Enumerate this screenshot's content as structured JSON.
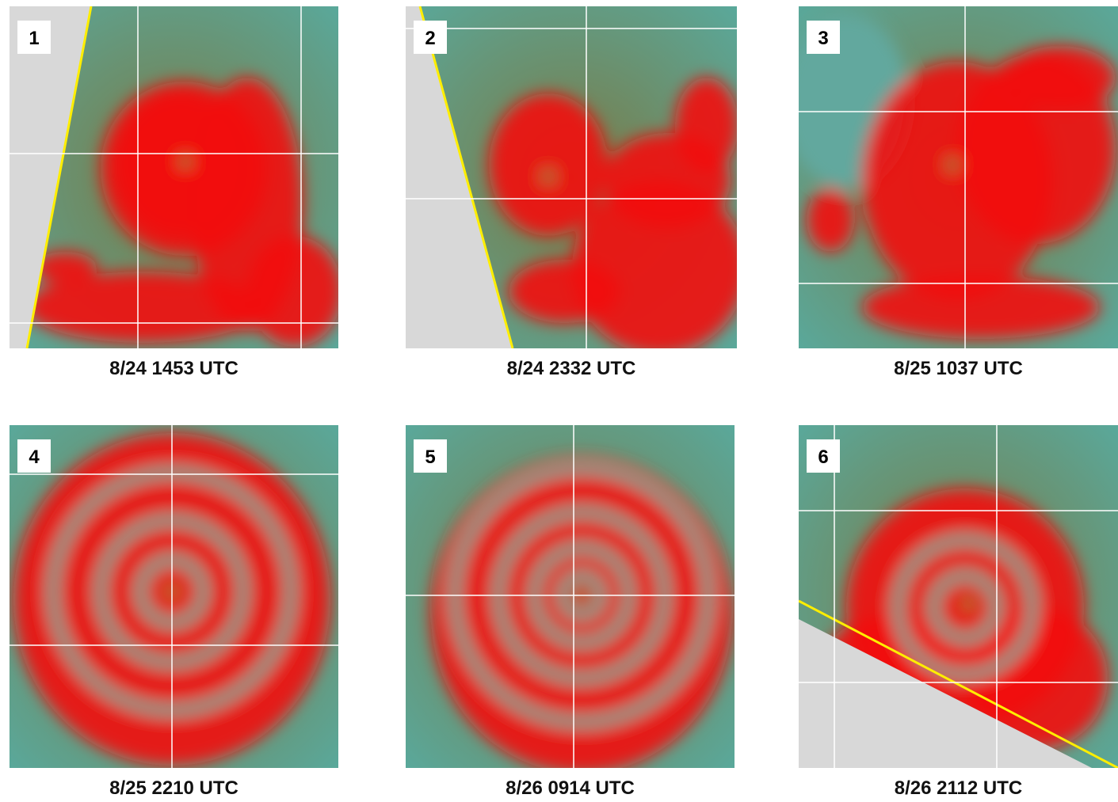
{
  "panels": [
    {
      "number": "1",
      "caption": "8/24 1453 UTC"
    },
    {
      "number": "2",
      "caption": "8/24 2332 UTC"
    },
    {
      "number": "3",
      "caption": "8/25 1037 UTC"
    },
    {
      "number": "4",
      "caption": "8/25 2210 UTC"
    },
    {
      "number": "5",
      "caption": "8/26 0914 UTC"
    },
    {
      "number": "6",
      "caption": "8/26 2112 UTC"
    }
  ]
}
